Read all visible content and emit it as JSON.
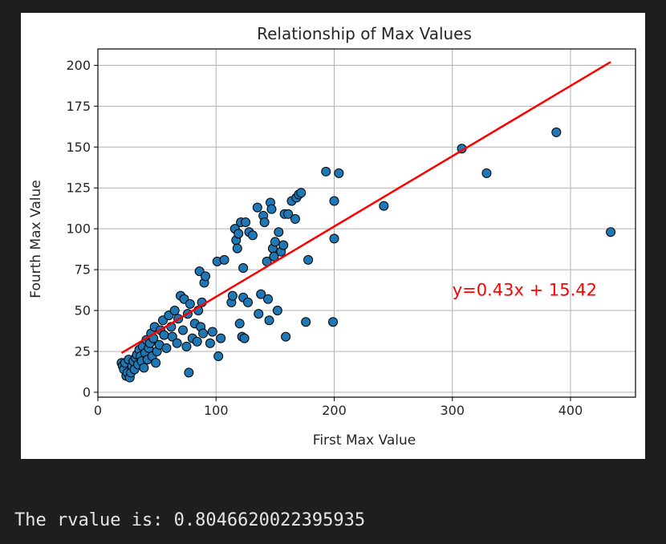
{
  "chart_data": {
    "type": "scatter",
    "title": "Relationship of Max Values",
    "xlabel": "First Max Value",
    "ylabel": "Fourth Max Value",
    "xlim": [
      0,
      455
    ],
    "ylim": [
      -3,
      210
    ],
    "xticks": [
      0,
      100,
      200,
      300,
      400
    ],
    "yticks": [
      0,
      25,
      50,
      75,
      100,
      125,
      150,
      175,
      200
    ],
    "grid": true,
    "point_color": "#1f77b4",
    "line_color": "#ff0000",
    "regression": {
      "slope": 0.43,
      "intercept": 15.42,
      "x_range": [
        20,
        434
      ]
    },
    "annotation": {
      "text": "y=0.43x + 15.42",
      "x": 300,
      "y": 59
    },
    "points": [
      [
        20,
        18
      ],
      [
        21,
        16
      ],
      [
        22,
        14
      ],
      [
        23,
        18
      ],
      [
        24,
        10
      ],
      [
        25,
        12
      ],
      [
        26,
        20
      ],
      [
        27,
        9
      ],
      [
        28,
        12
      ],
      [
        29,
        16
      ],
      [
        30,
        19
      ],
      [
        31,
        14
      ],
      [
        32,
        21
      ],
      [
        33,
        23
      ],
      [
        34,
        17
      ],
      [
        35,
        26
      ],
      [
        36,
        22
      ],
      [
        37,
        19
      ],
      [
        38,
        28
      ],
      [
        39,
        15
      ],
      [
        40,
        24
      ],
      [
        41,
        32
      ],
      [
        42,
        20
      ],
      [
        43,
        27
      ],
      [
        44,
        30
      ],
      [
        45,
        36
      ],
      [
        46,
        22
      ],
      [
        47,
        33
      ],
      [
        48,
        40
      ],
      [
        49,
        18
      ],
      [
        50,
        25
      ],
      [
        52,
        29
      ],
      [
        53,
        38
      ],
      [
        55,
        44
      ],
      [
        56,
        35
      ],
      [
        58,
        27
      ],
      [
        60,
        47
      ],
      [
        62,
        40
      ],
      [
        63,
        34
      ],
      [
        65,
        50
      ],
      [
        67,
        30
      ],
      [
        68,
        45
      ],
      [
        70,
        59
      ],
      [
        72,
        38
      ],
      [
        73,
        57
      ],
      [
        75,
        28
      ],
      [
        76,
        48
      ],
      [
        77,
        12
      ],
      [
        78,
        54
      ],
      [
        80,
        33
      ],
      [
        82,
        42
      ],
      [
        84,
        31
      ],
      [
        85,
        50
      ],
      [
        86,
        74
      ],
      [
        87,
        40
      ],
      [
        88,
        55
      ],
      [
        89,
        36
      ],
      [
        90,
        67
      ],
      [
        91,
        71
      ],
      [
        95,
        30
      ],
      [
        97,
        37
      ],
      [
        101,
        80
      ],
      [
        102,
        22
      ],
      [
        104,
        33
      ],
      [
        107,
        81
      ],
      [
        113,
        55
      ],
      [
        114,
        59
      ],
      [
        116,
        100
      ],
      [
        117,
        93
      ],
      [
        118,
        88
      ],
      [
        119,
        97
      ],
      [
        120,
        42
      ],
      [
        121,
        104
      ],
      [
        122,
        34
      ],
      [
        123,
        76
      ],
      [
        123,
        58
      ],
      [
        124,
        33
      ],
      [
        125,
        104
      ],
      [
        127,
        55
      ],
      [
        128,
        98
      ],
      [
        131,
        96
      ],
      [
        135,
        113
      ],
      [
        136,
        48
      ],
      [
        138,
        60
      ],
      [
        140,
        108
      ],
      [
        141,
        104
      ],
      [
        143,
        80
      ],
      [
        144,
        57
      ],
      [
        145,
        44
      ],
      [
        146,
        116
      ],
      [
        147,
        112
      ],
      [
        148,
        88
      ],
      [
        149,
        83
      ],
      [
        150,
        92
      ],
      [
        152,
        50
      ],
      [
        153,
        98
      ],
      [
        155,
        86
      ],
      [
        157,
        90
      ],
      [
        158,
        109
      ],
      [
        159,
        34
      ],
      [
        161,
        109
      ],
      [
        164,
        117
      ],
      [
        167,
        106
      ],
      [
        168,
        119
      ],
      [
        170,
        121
      ],
      [
        172,
        122
      ],
      [
        176,
        43
      ],
      [
        178,
        81
      ],
      [
        193,
        135
      ],
      [
        199,
        43
      ],
      [
        200,
        117
      ],
      [
        200,
        94
      ],
      [
        204,
        134
      ],
      [
        242,
        114
      ],
      [
        308,
        149
      ],
      [
        329,
        134
      ],
      [
        388,
        159
      ],
      [
        434,
        98
      ]
    ]
  },
  "output": {
    "text": "The rvalue is: 0.8046620022395935"
  }
}
